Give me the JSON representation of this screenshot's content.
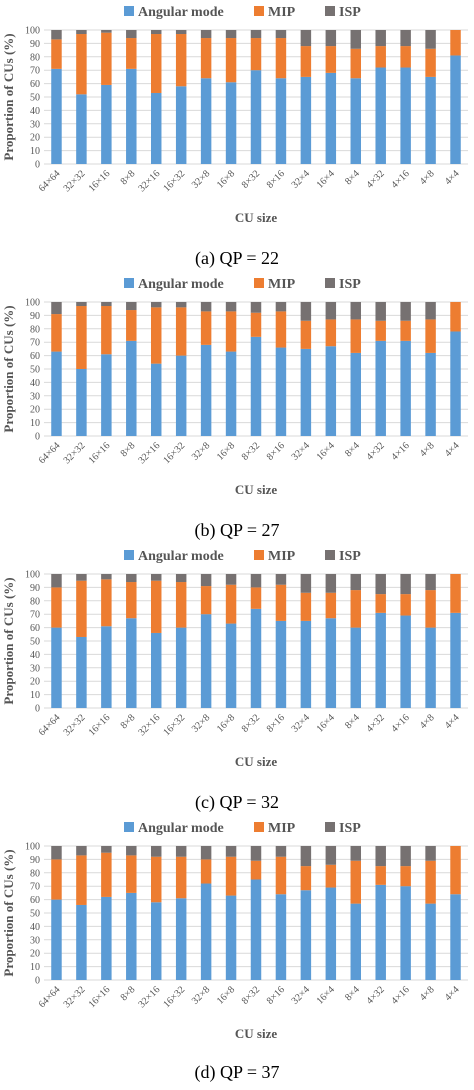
{
  "chart_data": [
    {
      "type": "bar",
      "stacked": true,
      "caption": "(a) QP = 22",
      "categories": [
        "64×64",
        "32×32",
        "16×16",
        "8×8",
        "32×16",
        "16×32",
        "32×8",
        "16×8",
        "8×32",
        "8×16",
        "32×4",
        "16×4",
        "8×4",
        "4×32",
        "4×16",
        "4×8",
        "4×4"
      ],
      "series": [
        {
          "name": "Angular mode",
          "color": "#5b9bd5",
          "values": [
            71,
            52,
            59,
            71,
            53,
            58,
            64,
            61,
            70,
            64,
            65,
            68,
            64,
            72,
            72,
            65,
            81
          ]
        },
        {
          "name": "MIP",
          "color": "#ed7d31",
          "values": [
            22,
            45,
            39,
            23,
            44,
            39,
            30,
            33,
            24,
            30,
            23,
            20,
            22,
            16,
            16,
            21,
            19
          ]
        },
        {
          "name": "ISP",
          "color": "#767171",
          "values": [
            7,
            3,
            2,
            6,
            3,
            3,
            6,
            6,
            6,
            6,
            12,
            12,
            14,
            12,
            12,
            14,
            0
          ]
        }
      ],
      "xlabel": "CU size",
      "ylabel": "Proportion of CUs (%)",
      "ylim": [
        0,
        100
      ],
      "yticks": [
        "0",
        "10",
        "20",
        "30",
        "40",
        "50",
        "60",
        "70",
        "80",
        "90",
        "100"
      ],
      "grid": true,
      "legend": "top"
    },
    {
      "type": "bar",
      "stacked": true,
      "caption": "(b) QP = 27",
      "categories": [
        "64×64",
        "32×32",
        "16×16",
        "8×8",
        "32×16",
        "16×32",
        "32×8",
        "16×8",
        "8×32",
        "8×16",
        "32×4",
        "16×4",
        "8×4",
        "4×32",
        "4×16",
        "4×8",
        "4×4"
      ],
      "series": [
        {
          "name": "Angular mode",
          "color": "#5b9bd5",
          "values": [
            63,
            50,
            61,
            71,
            54,
            60,
            68,
            63,
            74,
            66,
            65,
            67,
            62,
            71,
            71,
            62,
            78
          ]
        },
        {
          "name": "MIP",
          "color": "#ed7d31",
          "values": [
            28,
            47,
            36,
            23,
            42,
            36,
            25,
            30,
            18,
            27,
            21,
            20,
            25,
            15,
            15,
            25,
            22
          ]
        },
        {
          "name": "ISP",
          "color": "#767171",
          "values": [
            9,
            3,
            3,
            6,
            4,
            4,
            7,
            7,
            8,
            7,
            14,
            13,
            13,
            14,
            14,
            13,
            0
          ]
        }
      ],
      "xlabel": "CU size",
      "ylabel": "Proportion of CUs (%)",
      "ylim": [
        0,
        100
      ],
      "yticks": [
        "0",
        "10",
        "20",
        "30",
        "40",
        "50",
        "60",
        "70",
        "80",
        "90",
        "100"
      ],
      "grid": true,
      "legend": "top"
    },
    {
      "type": "bar",
      "stacked": true,
      "caption": "(c) QP = 32",
      "categories": [
        "64×64",
        "32×32",
        "16×16",
        "8×8",
        "32×16",
        "16×32",
        "32×8",
        "16×8",
        "8×32",
        "8×16",
        "32×4",
        "16×4",
        "8×4",
        "4×32",
        "4×16",
        "4×8",
        "4×4"
      ],
      "series": [
        {
          "name": "Angular mode",
          "color": "#5b9bd5",
          "values": [
            60,
            53,
            61,
            67,
            56,
            60,
            70,
            63,
            74,
            65,
            65,
            67,
            60,
            71,
            69,
            60,
            71
          ]
        },
        {
          "name": "MIP",
          "color": "#ed7d31",
          "values": [
            30,
            42,
            35,
            27,
            39,
            34,
            21,
            29,
            16,
            27,
            21,
            19,
            28,
            14,
            16,
            28,
            29
          ]
        },
        {
          "name": "ISP",
          "color": "#767171",
          "values": [
            10,
            5,
            4,
            6,
            5,
            6,
            9,
            8,
            10,
            8,
            14,
            14,
            12,
            15,
            15,
            12,
            0
          ]
        }
      ],
      "xlabel": "CU size",
      "ylabel": "Proportion of CUs (%)",
      "ylim": [
        0,
        100
      ],
      "yticks": [
        "0",
        "10",
        "20",
        "30",
        "40",
        "50",
        "60",
        "70",
        "80",
        "90",
        "100"
      ],
      "grid": true,
      "legend": "top"
    },
    {
      "type": "bar",
      "stacked": true,
      "caption": "(d) QP = 37",
      "categories": [
        "64×64",
        "32×32",
        "16×16",
        "8×8",
        "32×16",
        "16×32",
        "32×8",
        "16×8",
        "8×32",
        "8×16",
        "32×4",
        "16×4",
        "8×4",
        "4×32",
        "4×16",
        "4×8",
        "4×4"
      ],
      "series": [
        {
          "name": "Angular mode",
          "color": "#5b9bd5",
          "values": [
            60,
            56,
            62,
            65,
            58,
            61,
            72,
            63,
            75,
            64,
            67,
            69,
            57,
            71,
            70,
            57,
            64
          ]
        },
        {
          "name": "MIP",
          "color": "#ed7d31",
          "values": [
            30,
            37,
            33,
            28,
            34,
            31,
            18,
            29,
            14,
            28,
            18,
            17,
            32,
            14,
            15,
            32,
            36
          ]
        },
        {
          "name": "ISP",
          "color": "#767171",
          "values": [
            10,
            7,
            5,
            7,
            8,
            8,
            10,
            8,
            11,
            8,
            15,
            14,
            11,
            15,
            15,
            11,
            0
          ]
        }
      ],
      "xlabel": "CU size",
      "ylabel": "Proportion of CUs (%)",
      "ylim": [
        0,
        100
      ],
      "yticks": [
        "0",
        "10",
        "20",
        "30",
        "40",
        "50",
        "60",
        "70",
        "80",
        "90",
        "100"
      ],
      "grid": true,
      "legend": "top"
    }
  ]
}
